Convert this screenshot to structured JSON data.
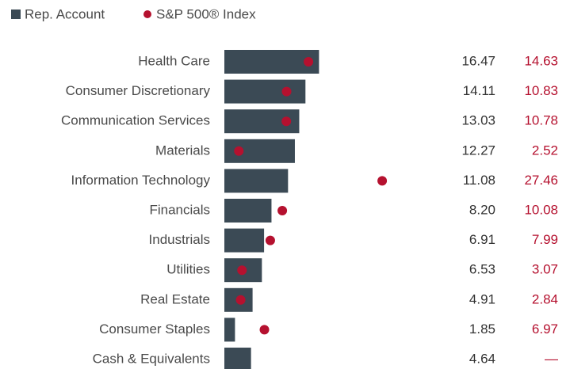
{
  "chart_data": {
    "type": "bar",
    "categories": [
      "Health Care",
      "Consumer Discretionary",
      "Communication Services",
      "Materials",
      "Information Technology",
      "Financials",
      "Industrials",
      "Utilities",
      "Real Estate",
      "Consumer Staples",
      "Cash & Equivalents"
    ],
    "series": [
      {
        "name": "Rep. Account",
        "color": "#3b4a55",
        "marker": "bar",
        "values": [
          16.47,
          14.11,
          13.03,
          12.27,
          11.08,
          8.2,
          6.91,
          6.53,
          4.91,
          1.85,
          4.64
        ],
        "value_labels": [
          "16.47",
          "14.11",
          "13.03",
          "12.27",
          "11.08",
          "8.20",
          "6.91",
          "6.53",
          "4.91",
          "1.85",
          "4.64"
        ]
      },
      {
        "name": "S&P 500® Index",
        "color": "#b5112f",
        "marker": "dot",
        "values": [
          14.63,
          10.83,
          10.78,
          2.52,
          27.46,
          10.08,
          7.99,
          3.07,
          2.84,
          6.97,
          null
        ],
        "value_labels": [
          "14.63",
          "10.83",
          "10.78",
          "2.52",
          "27.46",
          "10.08",
          "7.99",
          "3.07",
          "2.84",
          "6.97",
          "—"
        ]
      }
    ]
  }
}
